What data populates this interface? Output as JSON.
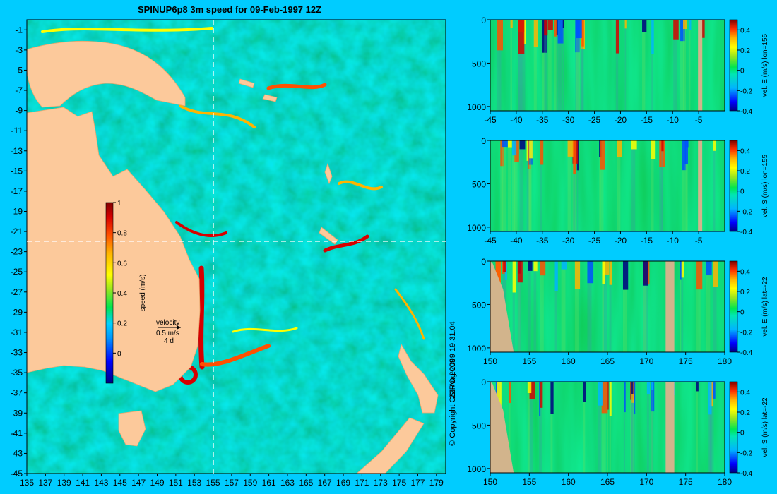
{
  "colors": {
    "background": "#00ccff",
    "land": "#fcc99b",
    "section_land": "#d2b48c",
    "ocean_base": "#1a9fdc",
    "colormap": [
      "#000080",
      "#0000ff",
      "#0096ff",
      "#00d2ff",
      "#00e650",
      "#46cc23",
      "#9ae61e",
      "#ffff00",
      "#ffb400",
      "#ff5000",
      "#d70000",
      "#800000"
    ]
  },
  "chart_data": [
    {
      "type": "heatmap",
      "title": "SPINUP6p8 3m speed for 09-Feb-1997 12Z",
      "x_ticks": [
        135,
        137,
        139,
        141,
        143,
        145,
        147,
        149,
        151,
        153,
        155,
        157,
        159,
        161,
        163,
        165,
        167,
        169,
        171,
        173,
        175,
        177,
        179
      ],
      "y_ticks": [
        -1,
        -3,
        -5,
        -7,
        -9,
        -11,
        -13,
        -15,
        -17,
        -19,
        -21,
        -23,
        -25,
        -27,
        -29,
        -31,
        -33,
        -35,
        -37,
        -39,
        -41,
        -43,
        -45
      ],
      "xlim": [
        135,
        180
      ],
      "ylim": [
        -45,
        0
      ],
      "section_lines": {
        "lon": 155,
        "lat": -22
      },
      "colorbar": {
        "label": "speed (m/s)",
        "ticks": [
          0,
          0.2,
          0.4,
          0.6,
          0.8,
          1
        ],
        "range": [
          -0.2,
          1
        ]
      },
      "vector_key": {
        "label": "velocity",
        "speed": "0.5 m/s",
        "period": "4 d"
      }
    },
    {
      "type": "heatmap",
      "x_ticks": [
        -45,
        -40,
        -35,
        -30,
        -25,
        -20,
        -15,
        -10,
        -5
      ],
      "y_ticks": [
        0,
        500,
        1000
      ],
      "xlim": [
        -45,
        0
      ],
      "ylim": [
        1050,
        0
      ],
      "colorbar": {
        "label": "vel. E (m/s) lon=155",
        "ticks": [
          0.4,
          0.2,
          0,
          -0.2,
          -0.4
        ],
        "range": [
          -0.4,
          0.5
        ]
      }
    },
    {
      "type": "heatmap",
      "x_ticks": [
        -45,
        -40,
        -35,
        -30,
        -25,
        -20,
        -15,
        -10,
        -5
      ],
      "y_ticks": [
        0,
        500,
        1000
      ],
      "xlim": [
        -45,
        0
      ],
      "ylim": [
        1050,
        0
      ],
      "colorbar": {
        "label": "vel. S (m/s) lon=155",
        "ticks": [
          0.4,
          0.2,
          0,
          -0.2,
          -0.4
        ],
        "range": [
          -0.4,
          0.5
        ]
      }
    },
    {
      "type": "heatmap",
      "x_ticks": [
        150,
        155,
        160,
        165,
        170,
        175,
        180
      ],
      "y_ticks": [
        0,
        500,
        1000
      ],
      "xlim": [
        150,
        180
      ],
      "ylim": [
        1050,
        0
      ],
      "colorbar": {
        "label": "vel. E (m/s) lat=-22",
        "ticks": [
          0.4,
          0.2,
          0,
          -0.2,
          -0.4
        ],
        "range": [
          -0.4,
          0.5
        ]
      }
    },
    {
      "type": "heatmap",
      "x_ticks": [
        150,
        155,
        160,
        165,
        170,
        175,
        180
      ],
      "y_ticks": [
        0,
        500,
        1000
      ],
      "xlim": [
        150,
        180
      ],
      "ylim": [
        1050,
        0
      ],
      "colorbar": {
        "label": "vel. S (m/s) lat=-22",
        "ticks": [
          0.4,
          0.2,
          0,
          -0.2,
          -0.4
        ],
        "range": [
          -0.4,
          0.5
        ]
      }
    }
  ],
  "footer": {
    "timestamp": "22-Aug-2009 19:31:04",
    "copyright": "© Copyright CSIRO 2009"
  }
}
